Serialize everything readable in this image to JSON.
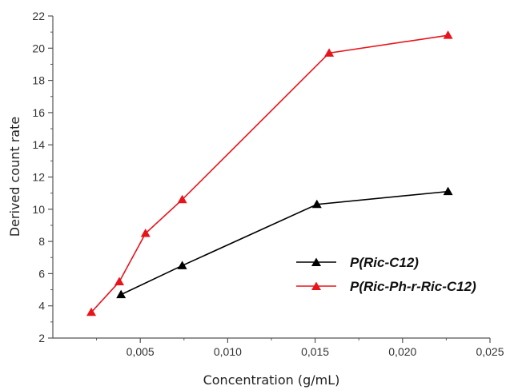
{
  "chart_data": {
    "type": "line",
    "xlabel": "Concentration (g/mL)",
    "ylabel": "Derived count rate",
    "xlim": [
      0.0,
      0.025
    ],
    "ylim": [
      2,
      22
    ],
    "x_ticks": [
      "0,005",
      "0,010",
      "0,015",
      "0,020",
      "0,025"
    ],
    "y_ticks": [
      "2",
      "4",
      "6",
      "8",
      "10",
      "12",
      "14",
      "16",
      "18",
      "20",
      "22"
    ],
    "grid": false,
    "legend_position": "bottom-right",
    "series": [
      {
        "name": "P(Ric-C12)",
        "color": "#000000",
        "marker": "triangle",
        "x": [
          0.0039,
          0.0074,
          0.0151,
          0.0226
        ],
        "y": [
          4.7,
          6.5,
          10.3,
          11.1
        ]
      },
      {
        "name": "P(Ric-Ph-r-Ric-C12)",
        "color": "#e8141c",
        "marker": "triangle",
        "x": [
          0.0022,
          0.0038,
          0.0053,
          0.0074,
          0.0158,
          0.0226
        ],
        "y": [
          3.6,
          5.5,
          8.5,
          10.6,
          19.7,
          20.8
        ]
      }
    ]
  }
}
